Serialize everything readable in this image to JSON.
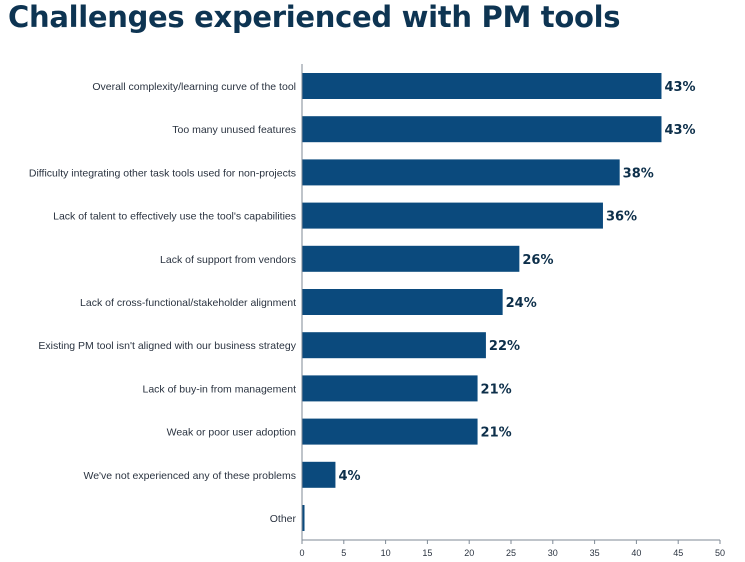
{
  "chart_data": {
    "type": "bar",
    "orientation": "horizontal",
    "title": "Challenges experienced with PM tools",
    "categories": [
      "Overall complexity/learning curve of the tool",
      "Too many unused features",
      "Difficulty integrating other task tools used for non-projects",
      "Lack of talent to effectively use the tool's capabilities",
      "Lack of support from vendors",
      "Lack of cross-functional/stakeholder alignment",
      "Existing PM tool isn't aligned with our business strategy",
      "Lack of buy-in from management",
      "Weak or poor user adoption",
      "We've not experienced any of these problems",
      "Other"
    ],
    "values": [
      43,
      43,
      38,
      36,
      26,
      24,
      22,
      21,
      21,
      4,
      0.3
    ],
    "data_labels": [
      "43%",
      "43%",
      "38%",
      "36%",
      "26%",
      "24%",
      "22%",
      "21%",
      "21%",
      "4%",
      ""
    ],
    "xlim": [
      0,
      50
    ],
    "xticks": [
      0,
      5,
      10,
      15,
      20,
      25,
      30,
      35,
      40,
      45,
      50
    ],
    "xlabel": "",
    "ylabel": "",
    "grid": false,
    "bar_color": "#0b4a7d",
    "title_color": "#0d3452"
  }
}
